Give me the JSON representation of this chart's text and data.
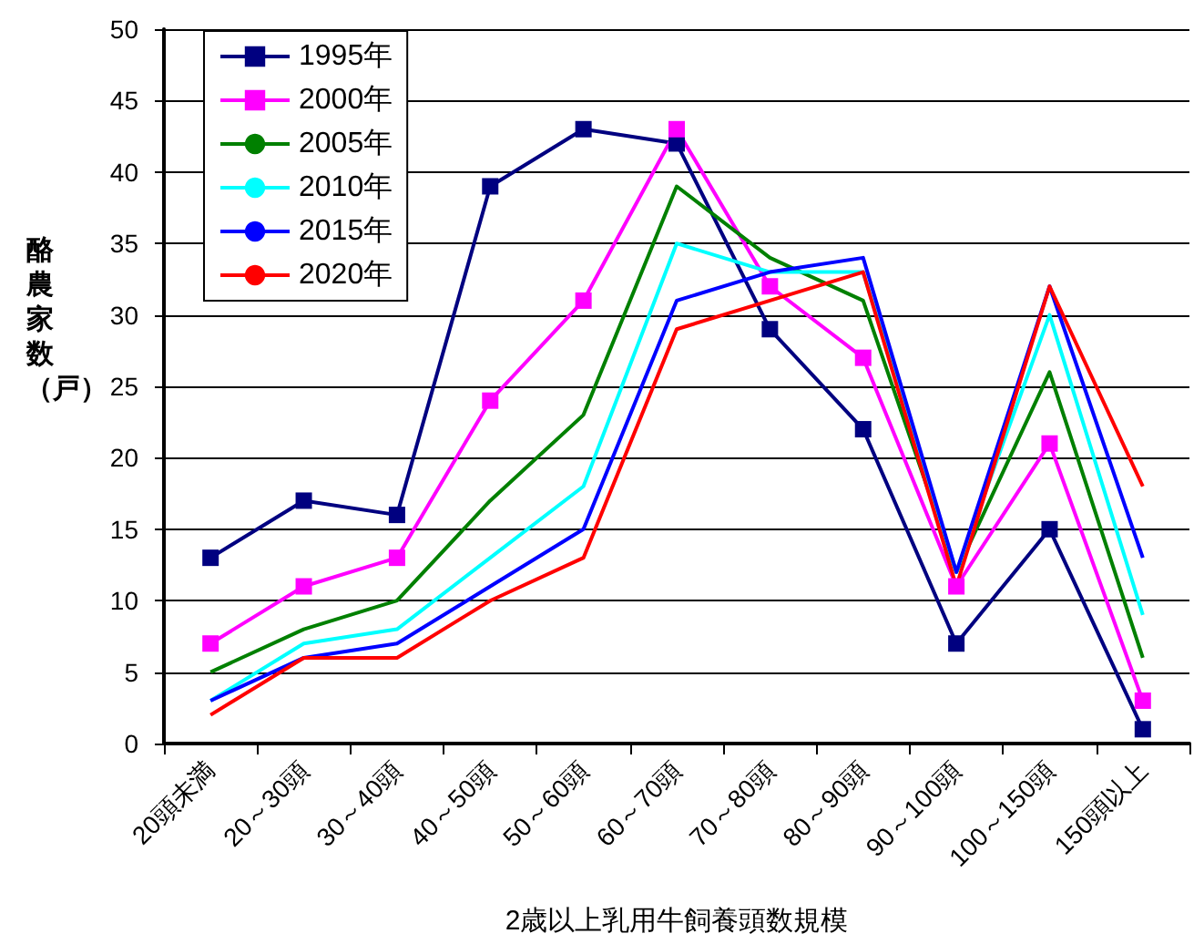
{
  "chart_data": {
    "type": "line",
    "xlabel": "2歳以上乳用牛飼養頭数規模",
    "ylabel": "酪農家数（戸）",
    "categories": [
      "20頭未満",
      "20～30頭",
      "30～40頭",
      "40～50頭",
      "50～60頭",
      "60～70頭",
      "70～80頭",
      "80～90頭",
      "90～100頭",
      "100～150頭",
      "150頭以上"
    ],
    "series": [
      {
        "name": "1995年",
        "color": "#000080",
        "marker": "square",
        "values": [
          13,
          17,
          16,
          39,
          43,
          42,
          29,
          22,
          7,
          15,
          1
        ]
      },
      {
        "name": "2000年",
        "color": "#ff00ff",
        "marker": "square",
        "values": [
          7,
          11,
          13,
          24,
          31,
          43,
          32,
          27,
          11,
          21,
          3
        ]
      },
      {
        "name": "2005年",
        "color": "#008000",
        "marker": "none",
        "values": [
          5,
          8,
          10,
          17,
          23,
          39,
          34,
          31,
          12,
          26,
          6
        ]
      },
      {
        "name": "2010年",
        "color": "#00ffff",
        "marker": "none",
        "values": [
          3,
          7,
          8,
          13,
          18,
          35,
          33,
          33,
          12,
          30,
          9
        ]
      },
      {
        "name": "2015年",
        "color": "#0000ff",
        "marker": "none",
        "values": [
          3,
          6,
          7,
          11,
          15,
          31,
          33,
          34,
          12,
          32,
          13
        ]
      },
      {
        "name": "2020年",
        "color": "#ff0000",
        "marker": "none",
        "values": [
          2,
          6,
          6,
          10,
          13,
          29,
          31,
          33,
          11,
          32,
          18
        ]
      }
    ],
    "ylim": [
      0,
      50
    ],
    "yticks": [
      0,
      5,
      10,
      15,
      20,
      25,
      30,
      35,
      40,
      45,
      50
    ],
    "grid": "y",
    "legend": "top left",
    "line_style": "solid"
  }
}
